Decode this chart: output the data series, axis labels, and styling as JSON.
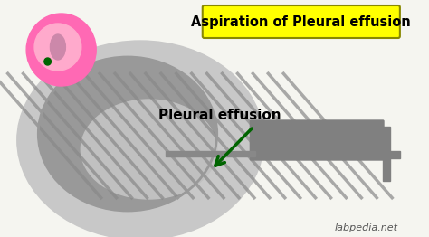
{
  "bg_color": "#f5f5f0",
  "title_text": "Aspiration of Pleural effusion",
  "title_bg": "#ffff00",
  "title_color": "#000000",
  "label_text": "Pleural effusion",
  "label_color": "#000000",
  "arrow_color": "#006400",
  "watermark": "labpedia.net",
  "body_outer_color": "#c8c8c8",
  "body_inner_color": "#b0b0b0",
  "lung_stripe_color": "#888888",
  "lung_bg_color": "#999999",
  "fluid_color": "#c0c0c0",
  "syringe_body_color": "#808080",
  "syringe_needle_color": "#888888",
  "pink_circle_color": "#ff69b4",
  "pink_inner_color": "#ffaacc",
  "pink_oval_color": "#ccaacc"
}
